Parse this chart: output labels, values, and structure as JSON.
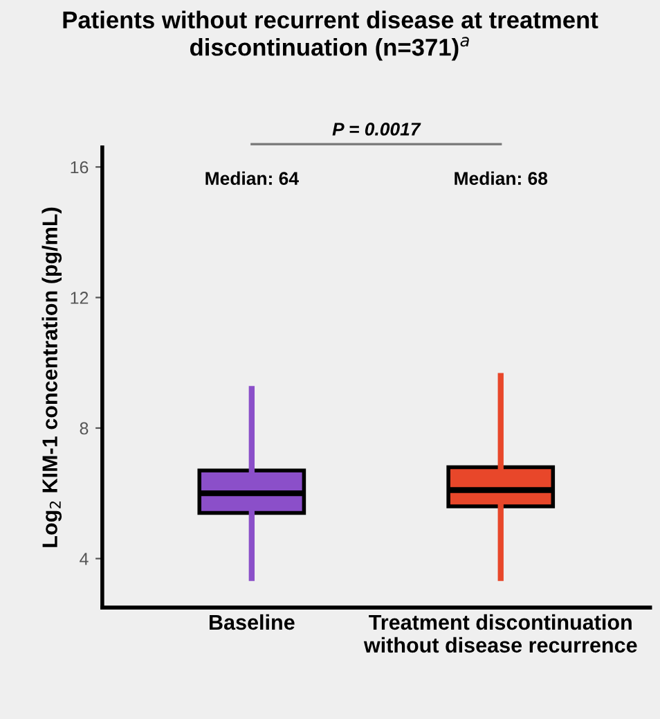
{
  "chart_data": {
    "type": "box",
    "title": "Patients without recurrent disease at treatment discontinuation (n=371)$^{a}$",
    "ylabel": "Log$_{2}$ KIM-1 concentration (pg/mL)",
    "categories": [
      "Baseline",
      "Treatment discontinuation without disease recurrence"
    ],
    "series": [
      {
        "color": "#8b4fc9",
        "boxes": [
          {
            "low": 3.4,
            "q1": 5.4,
            "median": 6.0,
            "q3": 6.7,
            "high": 9.2
          },
          null
        ]
      },
      {
        "color": "#e8472a",
        "boxes": [
          null,
          {
            "low": 3.4,
            "q1": 5.6,
            "median": 6.1,
            "q3": 6.8,
            "high": 9.6
          }
        ]
      }
    ],
    "annotations": [
      "P = 0.0017",
      "Median: 64",
      "Median: 68"
    ],
    "ylim": [
      2.5,
      16.6
    ],
    "yticks": [
      4,
      8,
      12,
      16
    ],
    "grid": false
  }
}
